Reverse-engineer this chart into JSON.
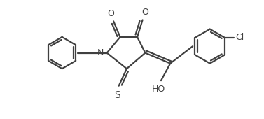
{
  "bg_color": "#ffffff",
  "line_color": "#404040",
  "line_width": 1.6,
  "figsize": [
    3.77,
    1.7
  ],
  "dpi": 100,
  "xlim": [
    0,
    10
  ],
  "ylim": [
    0,
    4.5
  ]
}
